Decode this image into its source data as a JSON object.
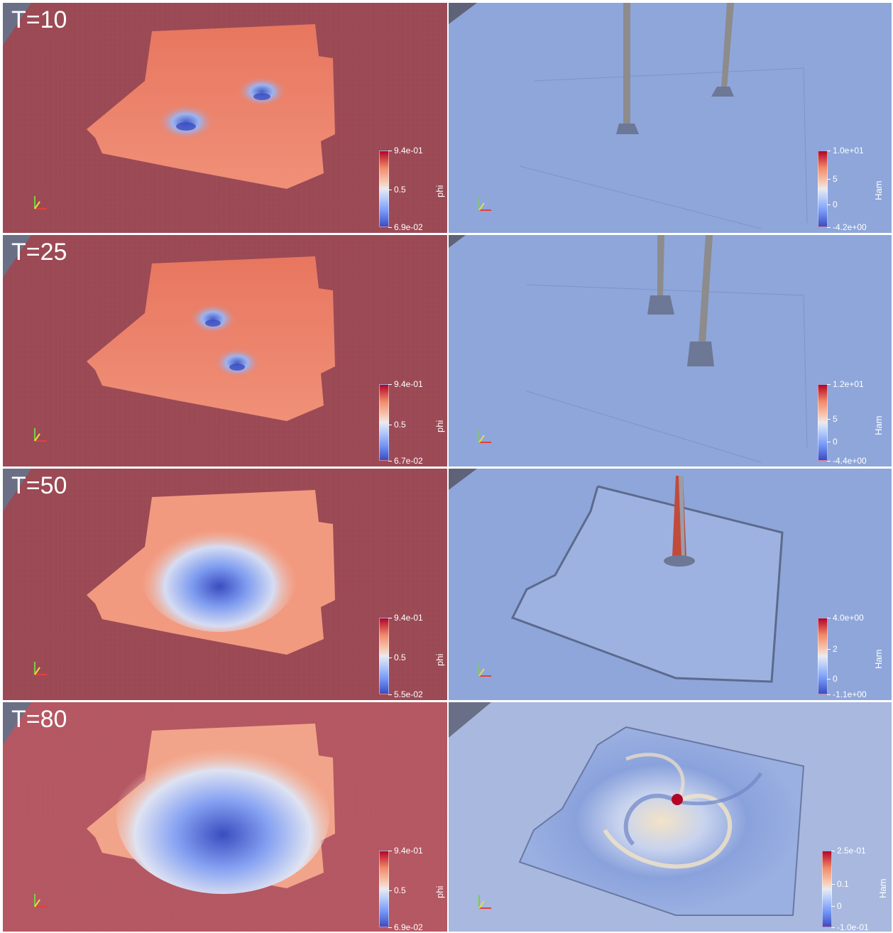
{
  "rows": [
    {
      "time_label": "T=10",
      "phi": {
        "title": "phi",
        "max": "9.4e-01",
        "mid": "0.5",
        "min": "6.9e-02"
      },
      "ham": {
        "title": "Ham",
        "max": "1.0e+01",
        "mid": "5",
        "zero": "0",
        "min": "-4.2e+00"
      }
    },
    {
      "time_label": "T=25",
      "phi": {
        "title": "phi",
        "max": "9.4e-01",
        "mid": "0.5",
        "min": "6.7e-02"
      },
      "ham": {
        "title": "Ham",
        "max": "1.2e+01",
        "mid": "5",
        "zero": "0",
        "min": "-4.4e+00"
      }
    },
    {
      "time_label": "T=50",
      "phi": {
        "title": "phi",
        "max": "9.4e-01",
        "mid": "0.5",
        "min": "5.5e-02"
      },
      "ham": {
        "title": "Ham",
        "max": "4.0e+00",
        "mid": "2",
        "zero": "0",
        "min": "-1.1e+00"
      }
    },
    {
      "time_label": "T=80",
      "phi": {
        "title": "phi",
        "max": "9.4e-01",
        "mid": "0.5",
        "min": "6.9e-02"
      },
      "ham": {
        "title": "Ham",
        "max": "2.5e-01",
        "mid": "0.1",
        "zero": "0",
        "min": "-1.0e-01"
      }
    }
  ],
  "colors": {
    "phi_background": "#9a4a55",
    "phi_sheet": "#ec7e66",
    "ham_background": "#8aa2d8",
    "colormap": "coolwarm"
  }
}
